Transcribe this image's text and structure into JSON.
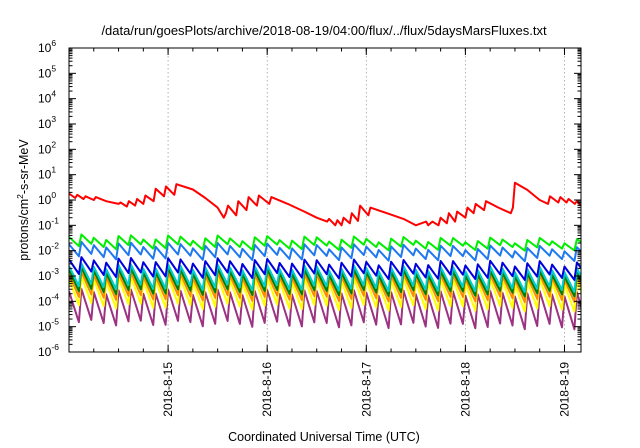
{
  "chart_data": {
    "type": "line",
    "title": "/data/run/goesPlots/archive/2018-08-19/04:00/flux/../flux/5daysMarsFluxes.txt",
    "xlabel": "Coordinated Universal Time (UTC)",
    "ylabel": {
      "base": "protons/cm",
      "exp": "2",
      "rest": "-s-sr-MeV"
    },
    "x_axis": {
      "type": "date",
      "start": "2018-08-14 00:00",
      "end": "2018-08-19 04:00"
    },
    "xticks": [
      {
        "date": "2018-08-15",
        "label": "2018-8-15"
      },
      {
        "date": "2018-08-16",
        "label": "2018-8-16"
      },
      {
        "date": "2018-08-17",
        "label": "2018-8-17"
      },
      {
        "date": "2018-08-18",
        "label": "2018-8-18"
      },
      {
        "date": "2018-08-19",
        "label": "2018-8-19"
      }
    ],
    "y_scale": "log",
    "ylim": [
      1e-06,
      1000000.0
    ],
    "yticks": [
      {
        "value": 1e-06,
        "base": "10",
        "exp": "-6"
      },
      {
        "value": 1e-05,
        "base": "10",
        "exp": "-5"
      },
      {
        "value": 0.0001,
        "base": "10",
        "exp": "-4"
      },
      {
        "value": 0.001,
        "base": "10",
        "exp": "-3"
      },
      {
        "value": 0.01,
        "base": "10",
        "exp": "-2"
      },
      {
        "value": 0.1,
        "base": "10",
        "exp": "-1"
      },
      {
        "value": 1,
        "base": "10",
        "exp": "0"
      },
      {
        "value": 10,
        "base": "10",
        "exp": "1"
      },
      {
        "value": 100,
        "base": "10",
        "exp": "2"
      },
      {
        "value": 1000,
        "base": "10",
        "exp": "3"
      },
      {
        "value": 10000,
        "base": "10",
        "exp": "4"
      },
      {
        "value": 100000,
        "base": "10",
        "exp": "5"
      },
      {
        "value": 1000000,
        "base": "10",
        "exp": "6"
      }
    ],
    "grid": {
      "x": true,
      "y": false
    },
    "legend": "none",
    "series": [
      {
        "color": "#ff0000",
        "points": [
          [
            "2018-08-14 00:00",
            1.8
          ],
          [
            "2018-08-14 01:30",
            1.2
          ],
          [
            "2018-08-14 02:00",
            1.6
          ],
          [
            "2018-08-14 03:30",
            1.1
          ],
          [
            "2018-08-14 04:00",
            1.4
          ],
          [
            "2018-08-14 06:00",
            1.0
          ],
          [
            "2018-08-14 06:30",
            1.3
          ],
          [
            "2018-08-14 09:00",
            0.9
          ],
          [
            "2018-08-14 12:00",
            0.7
          ],
          [
            "2018-08-14 12:30",
            0.8
          ],
          [
            "2018-08-14 14:00",
            0.55
          ],
          [
            "2018-08-14 14:30",
            0.9
          ],
          [
            "2018-08-14 16:00",
            0.6
          ],
          [
            "2018-08-14 16:30",
            1.1
          ],
          [
            "2018-08-14 18:00",
            0.7
          ],
          [
            "2018-08-14 18:30",
            1.5
          ],
          [
            "2018-08-14 20:30",
            0.9
          ],
          [
            "2018-08-14 21:00",
            2.8
          ],
          [
            "2018-08-14 23:00",
            1.4
          ],
          [
            "2018-08-14 23:30",
            3.4
          ],
          [
            "2018-08-15 01:30",
            1.6
          ],
          [
            "2018-08-15 02:00",
            4.2
          ],
          [
            "2018-08-15 06:00",
            2.6
          ],
          [
            "2018-08-15 09:00",
            1.2
          ],
          [
            "2018-08-15 12:00",
            0.5
          ],
          [
            "2018-08-15 13:30",
            0.2
          ],
          [
            "2018-08-15 14:00",
            0.3
          ],
          [
            "2018-08-15 14:30",
            0.6
          ],
          [
            "2018-08-15 16:30",
            0.25
          ],
          [
            "2018-08-15 17:00",
            0.9
          ],
          [
            "2018-08-15 19:00",
            0.4
          ],
          [
            "2018-08-15 19:30",
            1.3
          ],
          [
            "2018-08-15 21:30",
            0.6
          ],
          [
            "2018-08-15 22:00",
            1.5
          ],
          [
            "2018-08-16 00:30",
            0.7
          ],
          [
            "2018-08-16 01:00",
            1.3
          ],
          [
            "2018-08-16 05:00",
            0.7
          ],
          [
            "2018-08-16 09:00",
            0.35
          ],
          [
            "2018-08-16 12:00",
            0.2
          ],
          [
            "2018-08-16 14:30",
            0.14
          ],
          [
            "2018-08-16 15:00",
            0.18
          ],
          [
            "2018-08-16 16:30",
            0.1
          ],
          [
            "2018-08-16 17:00",
            0.16
          ],
          [
            "2018-08-16 18:00",
            0.1
          ],
          [
            "2018-08-16 18:30",
            0.2
          ],
          [
            "2018-08-16 20:00",
            0.12
          ],
          [
            "2018-08-16 20:30",
            0.3
          ],
          [
            "2018-08-16 22:00",
            0.15
          ],
          [
            "2018-08-16 22:30",
            0.6
          ],
          [
            "2018-08-17 00:30",
            0.25
          ],
          [
            "2018-08-17 01:00",
            0.5
          ],
          [
            "2018-08-17 05:00",
            0.3
          ],
          [
            "2018-08-17 09:00",
            0.18
          ],
          [
            "2018-08-17 12:00",
            0.1
          ],
          [
            "2018-08-17 14:30",
            0.14
          ],
          [
            "2018-08-17 15:00",
            0.1
          ],
          [
            "2018-08-17 16:00",
            0.14
          ],
          [
            "2018-08-17 17:30",
            0.1
          ],
          [
            "2018-08-17 18:00",
            0.2
          ],
          [
            "2018-08-17 19:30",
            0.12
          ],
          [
            "2018-08-17 20:00",
            0.3
          ],
          [
            "2018-08-17 21:30",
            0.14
          ],
          [
            "2018-08-17 22:00",
            0.35
          ],
          [
            "2018-08-18 00:00",
            0.2
          ],
          [
            "2018-08-18 00:30",
            0.5
          ],
          [
            "2018-08-18 02:00",
            0.3
          ],
          [
            "2018-08-18 02:30",
            0.7
          ],
          [
            "2018-08-18 04:30",
            0.4
          ],
          [
            "2018-08-18 05:00",
            0.9
          ],
          [
            "2018-08-18 08:00",
            0.5
          ],
          [
            "2018-08-18 11:00",
            0.3
          ],
          [
            "2018-08-18 11:30",
            0.5
          ],
          [
            "2018-08-18 12:00",
            4.8
          ],
          [
            "2018-08-18 15:00",
            2.5
          ],
          [
            "2018-08-18 18:00",
            1.0
          ],
          [
            "2018-08-18 20:00",
            0.7
          ],
          [
            "2018-08-18 20:30",
            1.4
          ],
          [
            "2018-08-18 22:30",
            0.8
          ],
          [
            "2018-08-18 23:00",
            1.3
          ],
          [
            "2018-08-19 00:30",
            0.8
          ],
          [
            "2018-08-19 01:00",
            1.1
          ],
          [
            "2018-08-19 02:30",
            0.7
          ],
          [
            "2018-08-19 03:00",
            0.9
          ],
          [
            "2018-08-19 04:00",
            0.6
          ]
        ]
      },
      {
        "color": "#00ee00",
        "cycle_peak": 0.035,
        "cycle_trough": 0.015,
        "end_peak": 0.025,
        "end_trough": 0.013
      },
      {
        "color": "#1e78f0",
        "cycle_peak": 0.018,
        "cycle_trough": 0.006,
        "end_peak": 0.012,
        "end_trough": 0.005
      },
      {
        "color": "#0000dd",
        "cycle_peak": 0.0045,
        "cycle_trough": 0.0012,
        "end_peak": 0.003,
        "end_trough": 0.0009
      },
      {
        "color": "#00cccc",
        "cycle_peak": 0.0025,
        "cycle_trough": 0.0004,
        "end_peak": 0.0018,
        "end_trough": 0.0003
      },
      {
        "color": "#008000",
        "cycle_peak": 0.0018,
        "cycle_trough": 0.00025,
        "end_peak": 0.0012,
        "end_trough": 0.0002
      },
      {
        "color": "#ff8c00",
        "cycle_peak": 0.0012,
        "cycle_trough": 0.00015,
        "end_peak": 0.0009,
        "end_trough": 0.00012
      },
      {
        "color": "#ffff00",
        "cycle_peak": 0.0008,
        "cycle_trough": 7e-05,
        "end_peak": 0.0006,
        "end_trough": 5e-05
      },
      {
        "color": "#9c3282",
        "cycle_peak": 0.00025,
        "cycle_trough": 1.5e-05,
        "end_peak": 0.0002,
        "end_trough": 1e-05
      }
    ]
  }
}
